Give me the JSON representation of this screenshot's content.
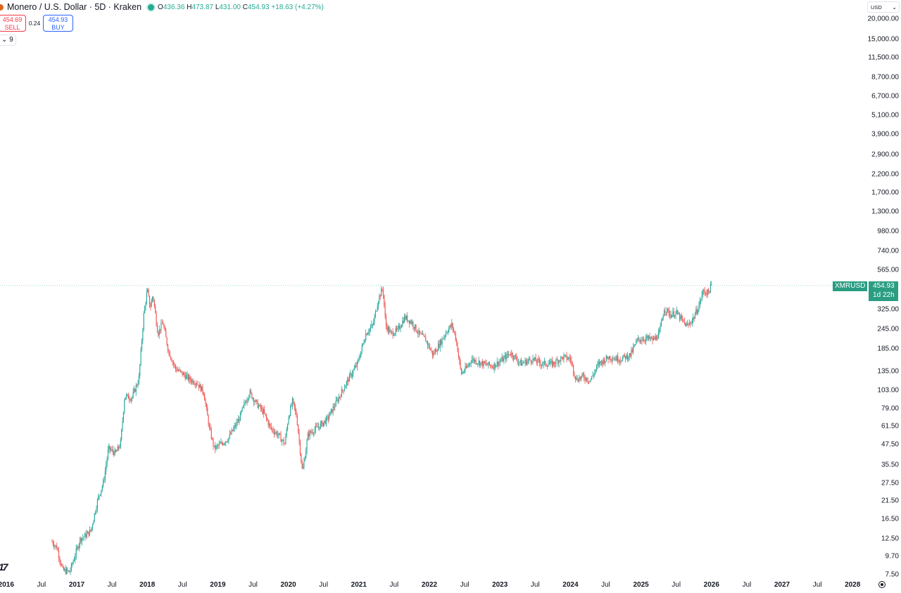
{
  "header": {
    "symbol_title": "Monero / U.S. Dollar · 5D · Kraken",
    "ohlc": {
      "open_label": "O",
      "open": "436.36",
      "high_label": "H",
      "high": "473.87",
      "low_label": "L",
      "low": "431.00",
      "close_label": "C",
      "close": "454.93",
      "change": "+18.63 (+4.27%)"
    }
  },
  "trade": {
    "sell_price": "454.69",
    "sell_label": "SELL",
    "spread": "0.24",
    "buy_price": "454.93",
    "buy_label": "BUY"
  },
  "indicators_toggle": {
    "icon": "chevron-down-icon",
    "count": "9"
  },
  "currency_selector": {
    "value": "USD"
  },
  "price_tag": {
    "symbol": "XMRUSD",
    "price": "454.93",
    "countdown": "1d 22h"
  },
  "logo_text": "17",
  "colors": {
    "up": "#26a69a",
    "down": "#ef5350",
    "price_line": "#2a9d82",
    "sell": "#f23645",
    "buy": "#2962ff"
  },
  "chart_data": {
    "type": "candlestick",
    "title": "Monero / U.S. Dollar · 5D · Kraken",
    "scale": "log",
    "xlabel": "",
    "ylabel": "USD",
    "ylim": [
      7.5,
      20000
    ],
    "xlim": [
      2016.0,
      2028.4
    ],
    "grid": false,
    "y_ticks": [
      "20,000.00",
      "15,000.00",
      "11,500.00",
      "8,700.00",
      "6,700.00",
      "5,100.00",
      "3,900.00",
      "2,900.00",
      "2,200.00",
      "1,700.00",
      "1,300.00",
      "980.00",
      "740.00",
      "565.00",
      "325.00",
      "245.00",
      "185.00",
      "135.00",
      "103.00",
      "79.00",
      "61.50",
      "47.50",
      "35.50",
      "27.50",
      "21.50",
      "16.50",
      "12.50",
      "9.70",
      "7.50"
    ],
    "y_tick_values": [
      20000,
      15000,
      11500,
      8700,
      6700,
      5100,
      3900,
      2900,
      2200,
      1700,
      1300,
      980,
      740,
      565,
      325,
      245,
      185,
      135,
      103,
      79,
      61.5,
      47.5,
      35.5,
      27.5,
      21.5,
      16.5,
      12.5,
      9.7,
      7.5
    ],
    "x_ticks": [
      {
        "label": "2016",
        "t": 2016.0,
        "year": true
      },
      {
        "label": "Jul",
        "t": 2016.5
      },
      {
        "label": "2017",
        "t": 2017.0,
        "year": true
      },
      {
        "label": "Jul",
        "t": 2017.5
      },
      {
        "label": "2018",
        "t": 2018.0,
        "year": true
      },
      {
        "label": "Jul",
        "t": 2018.5
      },
      {
        "label": "2019",
        "t": 2019.0,
        "year": true
      },
      {
        "label": "Jul",
        "t": 2019.5
      },
      {
        "label": "2020",
        "t": 2020.0,
        "year": true
      },
      {
        "label": "Jul",
        "t": 2020.5
      },
      {
        "label": "2021",
        "t": 2021.0,
        "year": true
      },
      {
        "label": "Jul",
        "t": 2021.5
      },
      {
        "label": "2022",
        "t": 2022.0,
        "year": true
      },
      {
        "label": "Jul",
        "t": 2022.5
      },
      {
        "label": "2023",
        "t": 2023.0,
        "year": true
      },
      {
        "label": "Jul",
        "t": 2023.5
      },
      {
        "label": "2024",
        "t": 2024.0,
        "year": true
      },
      {
        "label": "Jul",
        "t": 2024.5
      },
      {
        "label": "2025",
        "t": 2025.0,
        "year": true
      },
      {
        "label": "Jul",
        "t": 2025.5
      },
      {
        "label": "2026",
        "t": 2026.0,
        "year": true
      },
      {
        "label": "Jul",
        "t": 2026.5
      },
      {
        "label": "2027",
        "t": 2027.0,
        "year": true
      },
      {
        "label": "Jul",
        "t": 2027.5
      },
      {
        "label": "2028",
        "t": 2028.0,
        "year": true
      }
    ],
    "close_path": [
      {
        "t": 2016.65,
        "p": 12
      },
      {
        "t": 2016.72,
        "p": 11
      },
      {
        "t": 2016.8,
        "p": 8
      },
      {
        "t": 2016.9,
        "p": 7.8
      },
      {
        "t": 2016.98,
        "p": 10
      },
      {
        "t": 2017.05,
        "p": 12.5
      },
      {
        "t": 2017.12,
        "p": 13
      },
      {
        "t": 2017.2,
        "p": 14
      },
      {
        "t": 2017.3,
        "p": 22
      },
      {
        "t": 2017.38,
        "p": 28
      },
      {
        "t": 2017.45,
        "p": 45
      },
      {
        "t": 2017.55,
        "p": 42
      },
      {
        "t": 2017.62,
        "p": 48
      },
      {
        "t": 2017.68,
        "p": 95
      },
      {
        "t": 2017.78,
        "p": 92
      },
      {
        "t": 2017.88,
        "p": 120
      },
      {
        "t": 2017.95,
        "p": 300
      },
      {
        "t": 2018.0,
        "p": 430
      },
      {
        "t": 2018.04,
        "p": 330
      },
      {
        "t": 2018.08,
        "p": 400
      },
      {
        "t": 2018.15,
        "p": 230
      },
      {
        "t": 2018.22,
        "p": 270
      },
      {
        "t": 2018.3,
        "p": 180
      },
      {
        "t": 2018.4,
        "p": 140
      },
      {
        "t": 2018.5,
        "p": 130
      },
      {
        "t": 2018.6,
        "p": 120
      },
      {
        "t": 2018.7,
        "p": 115
      },
      {
        "t": 2018.8,
        "p": 100
      },
      {
        "t": 2018.88,
        "p": 60
      },
      {
        "t": 2018.95,
        "p": 45
      },
      {
        "t": 2019.05,
        "p": 48
      },
      {
        "t": 2019.15,
        "p": 52
      },
      {
        "t": 2019.3,
        "p": 68
      },
      {
        "t": 2019.38,
        "p": 85
      },
      {
        "t": 2019.45,
        "p": 100
      },
      {
        "t": 2019.55,
        "p": 85
      },
      {
        "t": 2019.65,
        "p": 75
      },
      {
        "t": 2019.75,
        "p": 60
      },
      {
        "t": 2019.85,
        "p": 55
      },
      {
        "t": 2019.95,
        "p": 48
      },
      {
        "t": 2020.0,
        "p": 70
      },
      {
        "t": 2020.06,
        "p": 88
      },
      {
        "t": 2020.12,
        "p": 70
      },
      {
        "t": 2020.2,
        "p": 32
      },
      {
        "t": 2020.28,
        "p": 55
      },
      {
        "t": 2020.4,
        "p": 60
      },
      {
        "t": 2020.55,
        "p": 68
      },
      {
        "t": 2020.7,
        "p": 90
      },
      {
        "t": 2020.85,
        "p": 120
      },
      {
        "t": 2020.98,
        "p": 150
      },
      {
        "t": 2021.1,
        "p": 230
      },
      {
        "t": 2021.2,
        "p": 260
      },
      {
        "t": 2021.28,
        "p": 380
      },
      {
        "t": 2021.34,
        "p": 440
      },
      {
        "t": 2021.38,
        "p": 260
      },
      {
        "t": 2021.45,
        "p": 230
      },
      {
        "t": 2021.55,
        "p": 240
      },
      {
        "t": 2021.65,
        "p": 290
      },
      {
        "t": 2021.75,
        "p": 270
      },
      {
        "t": 2021.85,
        "p": 230
      },
      {
        "t": 2021.95,
        "p": 210
      },
      {
        "t": 2022.05,
        "p": 170
      },
      {
        "t": 2022.15,
        "p": 200
      },
      {
        "t": 2022.25,
        "p": 240
      },
      {
        "t": 2022.32,
        "p": 260
      },
      {
        "t": 2022.38,
        "p": 210
      },
      {
        "t": 2022.45,
        "p": 130
      },
      {
        "t": 2022.52,
        "p": 140
      },
      {
        "t": 2022.6,
        "p": 160
      },
      {
        "t": 2022.75,
        "p": 150
      },
      {
        "t": 2022.9,
        "p": 145
      },
      {
        "t": 2023.05,
        "p": 160
      },
      {
        "t": 2023.15,
        "p": 175
      },
      {
        "t": 2023.3,
        "p": 150
      },
      {
        "t": 2023.45,
        "p": 160
      },
      {
        "t": 2023.6,
        "p": 150
      },
      {
        "t": 2023.75,
        "p": 150
      },
      {
        "t": 2023.9,
        "p": 165
      },
      {
        "t": 2024.0,
        "p": 160
      },
      {
        "t": 2024.08,
        "p": 120
      },
      {
        "t": 2024.18,
        "p": 125
      },
      {
        "t": 2024.28,
        "p": 118
      },
      {
        "t": 2024.4,
        "p": 150
      },
      {
        "t": 2024.55,
        "p": 165
      },
      {
        "t": 2024.7,
        "p": 160
      },
      {
        "t": 2024.85,
        "p": 170
      },
      {
        "t": 2024.95,
        "p": 210
      },
      {
        "t": 2025.08,
        "p": 215
      },
      {
        "t": 2025.18,
        "p": 210
      },
      {
        "t": 2025.26,
        "p": 230
      },
      {
        "t": 2025.33,
        "p": 330
      },
      {
        "t": 2025.42,
        "p": 300
      },
      {
        "t": 2025.5,
        "p": 310
      },
      {
        "t": 2025.6,
        "p": 270
      },
      {
        "t": 2025.66,
        "p": 255
      },
      {
        "t": 2025.75,
        "p": 290
      },
      {
        "t": 2025.82,
        "p": 340
      },
      {
        "t": 2025.88,
        "p": 420
      },
      {
        "t": 2025.95,
        "p": 410
      },
      {
        "t": 2026.0,
        "p": 454.93
      }
    ],
    "last_price": 454.93,
    "last_price_label": "454.93"
  }
}
